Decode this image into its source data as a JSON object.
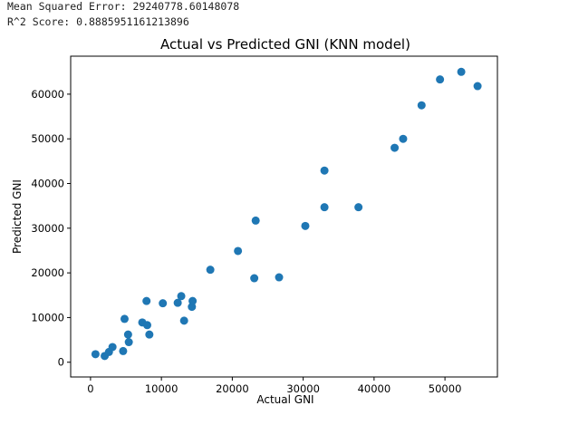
{
  "output": {
    "mse_text": "Mean Squared Error: 29240778.60148078",
    "r2_text": "R^2 Score: 0.8885951161213896"
  },
  "chart_data": {
    "type": "scatter",
    "title": "Actual vs Predicted GNI (KNN model)",
    "xlabel": "Actual GNI",
    "ylabel": "Predicted GNI",
    "xlim": [
      -2800,
      57400
    ],
    "ylim": [
      -3300,
      68500
    ],
    "xticks": [
      0,
      10000,
      20000,
      30000,
      40000,
      50000
    ],
    "yticks": [
      0,
      10000,
      20000,
      30000,
      40000,
      50000,
      60000
    ],
    "grid": false,
    "marker_color": "#1f77b4",
    "x": [
      700,
      2000,
      2600,
      3100,
      4600,
      4800,
      5300,
      5400,
      7300,
      7900,
      8000,
      8300,
      10200,
      12300,
      12800,
      13200,
      14300,
      14400,
      16900,
      20800,
      23100,
      23300,
      26600,
      30300,
      33000,
      33000,
      37800,
      42900,
      44100,
      46700,
      49300,
      52300,
      54600
    ],
    "y": [
      1800,
      1400,
      2300,
      3400,
      2500,
      9700,
      6200,
      4500,
      8900,
      13700,
      8300,
      6200,
      13200,
      13300,
      14800,
      9300,
      12400,
      13700,
      20700,
      24900,
      18800,
      31700,
      19000,
      30500,
      42900,
      34700,
      34700,
      48000,
      50000,
      57500,
      63300,
      65000,
      61800
    ]
  }
}
